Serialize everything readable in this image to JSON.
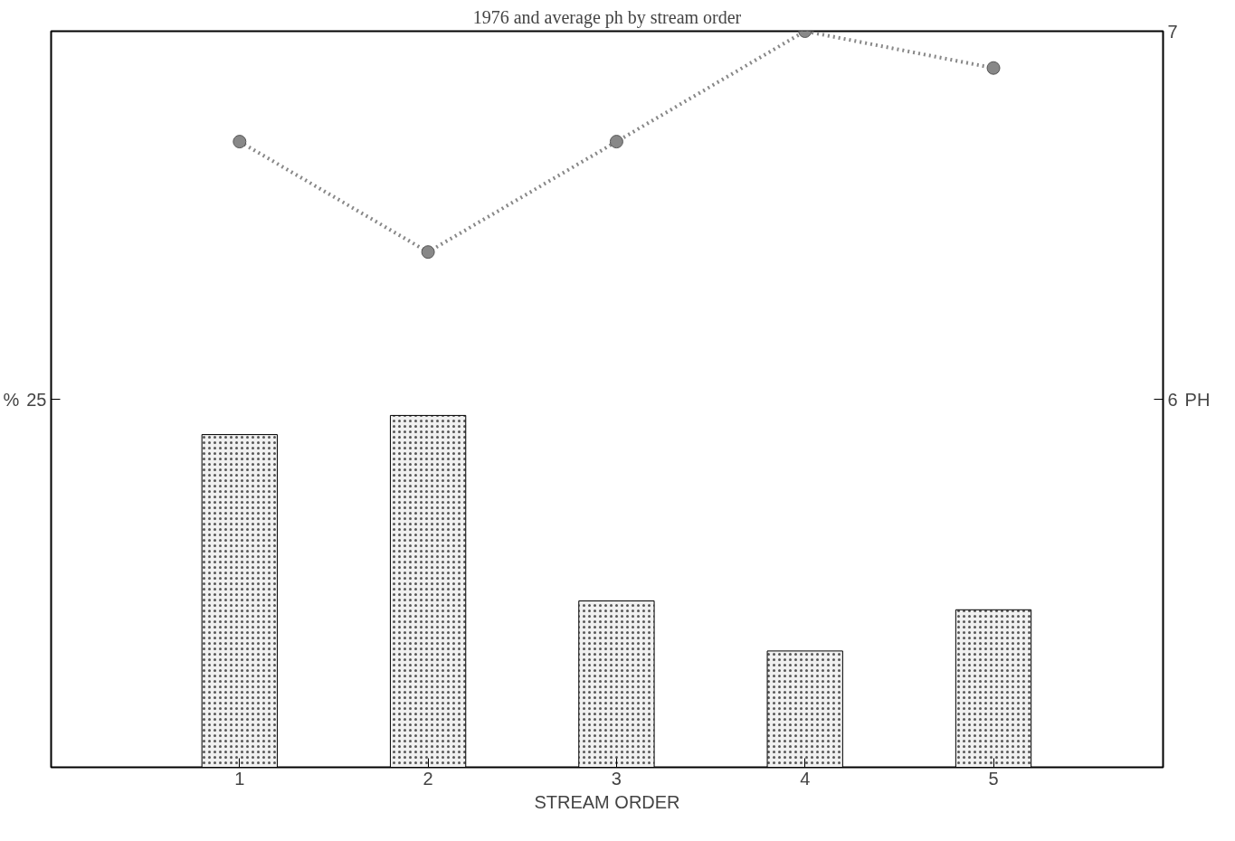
{
  "chart_data": {
    "type": "bar",
    "title": "1976 and average ph by stream order",
    "xlabel": "STREAM ORDER",
    "ylabel": "%",
    "y2label": "PH",
    "x": [
      1,
      2,
      3,
      4,
      5
    ],
    "xlim": [
      0,
      5.9
    ],
    "xticks": [
      1,
      2,
      3,
      4,
      5
    ],
    "ylim": [
      0,
      50
    ],
    "yticks": [
      {
        "value": 0,
        "label": null
      },
      25
    ],
    "y2lim": [
      5,
      7
    ],
    "y2ticks": [
      6,
      7
    ],
    "grid": false,
    "series": [
      {
        "color": "#f0f0f0",
        "values": [
          22.6,
          23.9,
          11.3,
          7.9,
          10.7
        ]
      },
      {
        "type": "line",
        "axis": "y2",
        "color": "#888888",
        "marker": "circle",
        "line_style": "dotted",
        "values": [
          6.7,
          6.4,
          6.7,
          7.0,
          6.9
        ]
      }
    ]
  }
}
